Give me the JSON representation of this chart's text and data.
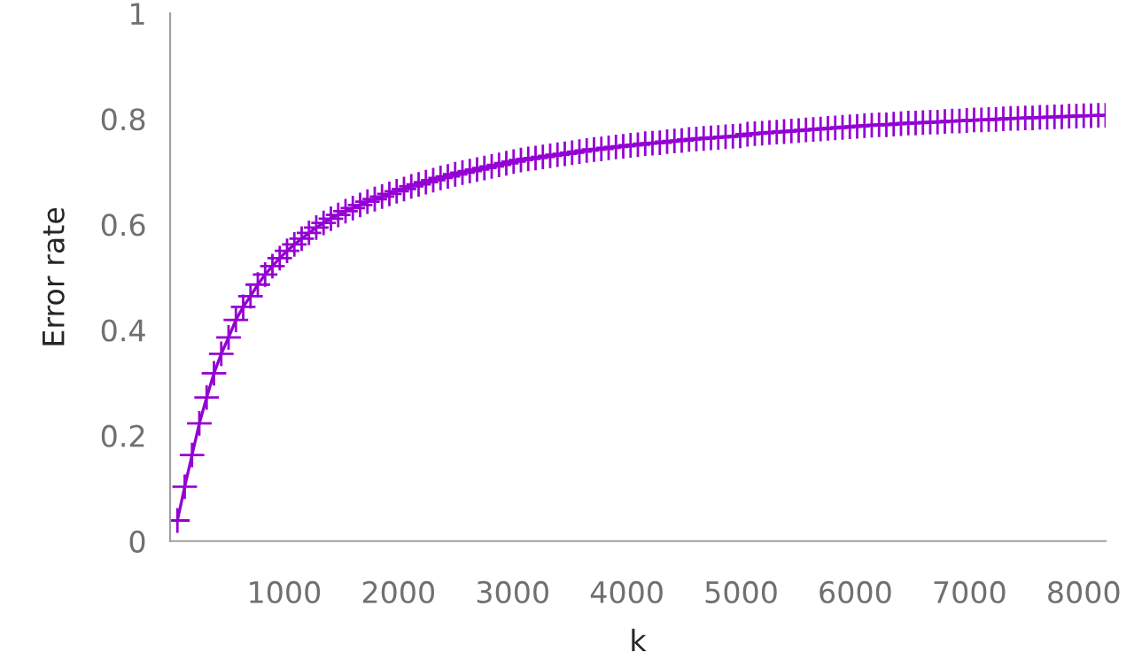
{
  "chart_data": {
    "type": "line",
    "xlabel": "k",
    "ylabel": "Error rate",
    "marker": "cross",
    "line_style": "solid",
    "grid": false,
    "legend": false,
    "xlim": [
      0,
      8192
    ],
    "ylim": [
      0,
      1
    ],
    "xticks": [
      1000,
      2000,
      3000,
      4000,
      5000,
      6000,
      7000,
      8000
    ],
    "yticks": [
      0,
      0.2,
      0.4,
      0.6,
      0.8,
      1
    ],
    "series": [
      {
        "color": "#9400d3",
        "x": [
          64,
          128,
          192,
          256,
          320,
          384,
          448,
          512,
          576,
          640,
          704,
          768,
          832,
          896,
          960,
          1024,
          1088,
          1152,
          1216,
          1280,
          1344,
          1408,
          1472,
          1536,
          1600,
          1664,
          1728,
          1792,
          1856,
          1920,
          1984,
          2048,
          2112,
          2176,
          2240,
          2304,
          2368,
          2432,
          2496,
          2560,
          2624,
          2688,
          2752,
          2816,
          2880,
          2944,
          3008,
          3072,
          3136,
          3200,
          3264,
          3328,
          3392,
          3456,
          3520,
          3584,
          3648,
          3712,
          3776,
          3840,
          3904,
          3968,
          4032,
          4096,
          4160,
          4224,
          4288,
          4352,
          4416,
          4480,
          4544,
          4608,
          4672,
          4736,
          4800,
          4864,
          4928,
          4992,
          5056,
          5120,
          5184,
          5248,
          5312,
          5376,
          5440,
          5504,
          5568,
          5632,
          5696,
          5760,
          5824,
          5888,
          5952,
          6016,
          6080,
          6144,
          6208,
          6272,
          6336,
          6400,
          6464,
          6528,
          6592,
          6656,
          6720,
          6784,
          6848,
          6912,
          6976,
          7040,
          7104,
          7168,
          7232,
          7296,
          7360,
          7424,
          7488,
          7552,
          7616,
          7680,
          7744,
          7808,
          7872,
          7936,
          8000,
          8064,
          8128,
          8192
        ],
        "values": [
          0.039,
          0.103,
          0.163,
          0.223,
          0.272,
          0.318,
          0.355,
          0.386,
          0.419,
          0.444,
          0.464,
          0.486,
          0.505,
          0.521,
          0.536,
          0.55,
          0.562,
          0.573,
          0.584,
          0.594,
          0.603,
          0.611,
          0.618,
          0.625,
          0.631,
          0.637,
          0.643,
          0.648,
          0.653,
          0.658,
          0.663,
          0.667,
          0.672,
          0.676,
          0.68,
          0.684,
          0.688,
          0.691,
          0.695,
          0.698,
          0.701,
          0.704,
          0.707,
          0.71,
          0.713,
          0.716,
          0.719,
          0.722,
          0.724,
          0.726,
          0.728,
          0.73,
          0.732,
          0.734,
          0.736,
          0.738,
          0.74,
          0.742,
          0.743,
          0.745,
          0.747,
          0.748,
          0.75,
          0.751,
          0.753,
          0.754,
          0.755,
          0.757,
          0.758,
          0.759,
          0.761,
          0.762,
          0.763,
          0.764,
          0.765,
          0.766,
          0.767,
          0.768,
          0.771,
          0.772,
          0.773,
          0.774,
          0.775,
          0.776,
          0.777,
          0.778,
          0.779,
          0.78,
          0.781,
          0.782,
          0.783,
          0.784,
          0.785,
          0.786,
          0.787,
          0.788,
          0.789,
          0.789,
          0.79,
          0.791,
          0.792,
          0.792,
          0.793,
          0.794,
          0.794,
          0.795,
          0.796,
          0.796,
          0.797,
          0.798,
          0.798,
          0.799,
          0.799,
          0.8,
          0.801,
          0.801,
          0.802,
          0.802,
          0.803,
          0.803,
          0.804,
          0.804,
          0.805,
          0.805,
          0.806,
          0.806,
          0.807,
          0.807
        ]
      }
    ]
  }
}
